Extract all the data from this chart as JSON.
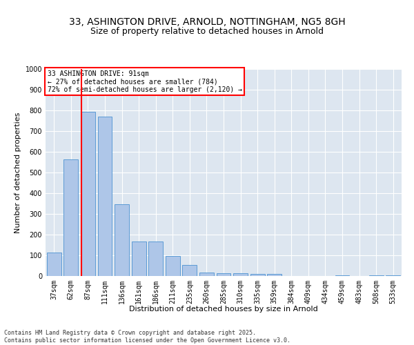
{
  "title_line1": "33, ASHINGTON DRIVE, ARNOLD, NOTTINGHAM, NG5 8GH",
  "title_line2": "Size of property relative to detached houses in Arnold",
  "xlabel": "Distribution of detached houses by size in Arnold",
  "ylabel": "Number of detached properties",
  "categories": [
    "37sqm",
    "62sqm",
    "87sqm",
    "111sqm",
    "136sqm",
    "161sqm",
    "186sqm",
    "211sqm",
    "235sqm",
    "260sqm",
    "285sqm",
    "310sqm",
    "335sqm",
    "359sqm",
    "384sqm",
    "409sqm",
    "434sqm",
    "459sqm",
    "483sqm",
    "508sqm",
    "533sqm"
  ],
  "values": [
    112,
    563,
    793,
    771,
    348,
    168,
    168,
    98,
    55,
    18,
    13,
    13,
    10,
    10,
    0,
    0,
    0,
    5,
    0,
    5,
    5
  ],
  "bar_color": "#aec6e8",
  "bar_edge_color": "#5b9bd5",
  "background_color": "#dde6f0",
  "grid_color": "#ffffff",
  "vline_color": "red",
  "vline_pos": 1.6,
  "annotation_text": "33 ASHINGTON DRIVE: 91sqm\n← 27% of detached houses are smaller (784)\n72% of semi-detached houses are larger (2,120) →",
  "annotation_box_color": "red",
  "ylim": [
    0,
    1000
  ],
  "yticks": [
    0,
    100,
    200,
    300,
    400,
    500,
    600,
    700,
    800,
    900,
    1000
  ],
  "footer_text": "Contains HM Land Registry data © Crown copyright and database right 2025.\nContains public sector information licensed under the Open Government Licence v3.0.",
  "title_fontsize": 10,
  "subtitle_fontsize": 9,
  "tick_fontsize": 7,
  "ylabel_fontsize": 8,
  "xlabel_fontsize": 8,
  "footer_fontsize": 6,
  "fig_bg": "#ffffff"
}
